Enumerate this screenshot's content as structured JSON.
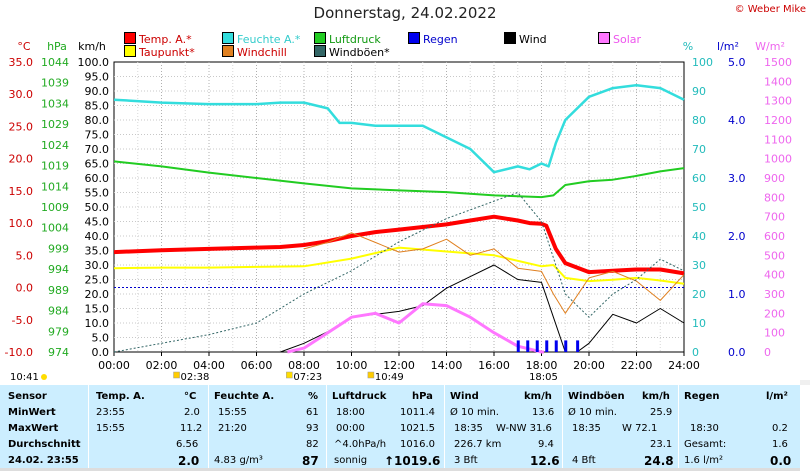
{
  "header": {
    "title": "Donnerstag, 24.02.2022",
    "credit": "© Weber Mike"
  },
  "legend": [
    {
      "label": "Temp. A.*",
      "color": "#ff0000",
      "text_color": "#cc0000"
    },
    {
      "label": "Feuchte A.*",
      "color": "#33dddd",
      "text_color": "#33cccc"
    },
    {
      "label": "Luftdruck",
      "color": "#22cc22",
      "text_color": "#119911"
    },
    {
      "label": "Regen",
      "color": "#0000ee",
      "text_color": "#0000cc"
    },
    {
      "label": "Wind",
      "color": "#000000",
      "text_color": "#000000"
    },
    {
      "label": "Solar",
      "color": "#ff77ff",
      "text_color": "#ee55ee"
    },
    {
      "label": "Taupunkt*",
      "color": "#ffff00",
      "text_color": "#cc0000"
    },
    {
      "label": "Windchill",
      "color": "#e08020",
      "text_color": "#cc0000"
    },
    {
      "label": "Windböen*",
      "color": "#336666",
      "text_color": "#000000"
    }
  ],
  "axes": {
    "temp": {
      "unit": "°C",
      "ticks": [
        "35.0",
        "30.0",
        "25.0",
        "20.0",
        "15.0",
        "10.0",
        "5.0",
        "0.0",
        "-5.0",
        "-10.0"
      ],
      "color": "#cc0000"
    },
    "pressure": {
      "unit": "hPa",
      "ticks": [
        "1044",
        "1039",
        "1034",
        "1029",
        "1024",
        "1019",
        "1014",
        "1009",
        "1004",
        "999",
        "994",
        "989",
        "984",
        "979",
        "974"
      ],
      "color": "#22aa22"
    },
    "wind": {
      "unit": "km/h",
      "ticks": [
        "100.0",
        "95.0",
        "90.0",
        "85.0",
        "80.0",
        "75.0",
        "70.0",
        "65.0",
        "60.0",
        "55.0",
        "50.0",
        "45.0",
        "40.0",
        "35.0",
        "30.0",
        "25.0",
        "20.0",
        "15.0",
        "10.0",
        "5.0",
        "0.0"
      ],
      "color": "#000000"
    },
    "humidity": {
      "unit": "%",
      "ticks": [
        "100",
        "90",
        "80",
        "70",
        "60",
        "50",
        "40",
        "30",
        "20",
        "10",
        "0"
      ],
      "color": "#22bbbb"
    },
    "rain": {
      "unit": "l/m²",
      "ticks": [
        "5.0",
        "4.0",
        "3.0",
        "2.0",
        "1.0",
        "0.0"
      ],
      "color": "#0000cc"
    },
    "solar": {
      "unit": "W/m²",
      "ticks": [
        "1500",
        "1400",
        "1300",
        "1200",
        "1100",
        "1000",
        "900",
        "800",
        "700",
        "600",
        "500",
        "400",
        "300",
        "200",
        "100",
        "0"
      ],
      "color": "#ee66ee"
    },
    "x": {
      "ticks": [
        "00:00",
        "02:00",
        "04:00",
        "06:00",
        "08:00",
        "10:00",
        "12:00",
        "14:00",
        "16:00",
        "18:00",
        "20:00",
        "22:00",
        "24:00"
      ]
    }
  },
  "markers": {
    "sunrise": "07:23",
    "sunset": "18:05",
    "moon1": "02:38",
    "moon2": "10:49",
    "left_time": "10:41"
  },
  "chart_data": {
    "type": "line",
    "x_unit": "hours",
    "series": [
      {
        "name": "Temp. A.*",
        "axis": "°C",
        "color": "#ff0000",
        "x": [
          0,
          2,
          4,
          6,
          7,
          8,
          9,
          10,
          11,
          12,
          13,
          14,
          15,
          16,
          17,
          17.5,
          18,
          18.2,
          18.6,
          19,
          20,
          21,
          22,
          23,
          24
        ],
        "y": [
          5.5,
          5.8,
          6.0,
          6.2,
          6.3,
          6.6,
          7.2,
          8.0,
          8.6,
          9.0,
          9.4,
          9.8,
          10.4,
          11.0,
          10.4,
          10.0,
          9.9,
          9.6,
          6.0,
          3.8,
          2.4,
          2.6,
          2.8,
          2.8,
          2.2
        ]
      },
      {
        "name": "Feuchte A.*",
        "axis": "%",
        "color": "#33dddd",
        "x": [
          0,
          2,
          4,
          6,
          7,
          8,
          9,
          9.5,
          10,
          11,
          12,
          13,
          14,
          15,
          16,
          17,
          17.5,
          18,
          18.3,
          18.6,
          19,
          20,
          21,
          22,
          23,
          24
        ],
        "y": [
          87,
          86,
          85.5,
          85.5,
          86,
          86,
          84,
          79,
          79,
          78,
          78,
          78,
          74,
          70,
          62,
          64,
          63,
          65,
          64,
          72,
          80,
          88,
          91,
          92,
          91,
          87
        ]
      },
      {
        "name": "Luftdruck",
        "axis": "hPa",
        "color": "#22cc22",
        "x": [
          0,
          2,
          4,
          6,
          8,
          10,
          12,
          14,
          16,
          18,
          18.5,
          19,
          20,
          21,
          22,
          23,
          24
        ],
        "y": [
          1020.0,
          1018.8,
          1017.3,
          1016.0,
          1014.7,
          1013.5,
          1013.0,
          1012.6,
          1011.8,
          1011.4,
          1011.8,
          1014.3,
          1015.2,
          1015.6,
          1016.5,
          1017.6,
          1018.4
        ]
      },
      {
        "name": "Taupunkt*",
        "axis": "°C",
        "color": "#ffff00",
        "x": [
          0,
          2,
          4,
          6,
          8,
          10,
          12,
          14,
          16,
          18,
          18.5,
          19,
          20,
          21,
          22,
          23,
          24
        ],
        "y": [
          3.0,
          3.1,
          3.1,
          3.2,
          3.3,
          4.5,
          6.2,
          5.6,
          5.0,
          3.3,
          3.5,
          1.5,
          1.0,
          1.2,
          1.5,
          1.1,
          0.6
        ]
      },
      {
        "name": "Windchill",
        "axis": "°C",
        "color": "#e08020",
        "x": [
          8,
          9,
          10,
          11,
          12,
          13,
          14,
          15,
          16,
          17,
          18,
          18.5,
          19,
          20,
          21,
          22,
          23,
          24
        ],
        "y": [
          6.0,
          7.0,
          8.5,
          7.0,
          5.5,
          6.0,
          7.5,
          5.0,
          6.0,
          3.0,
          2.5,
          -1.0,
          -4.0,
          1.5,
          2.5,
          1.0,
          -2.0,
          2.0
        ]
      },
      {
        "name": "Wind",
        "axis": "km/h",
        "color": "#000000",
        "x": [
          0,
          4,
          5,
          6,
          7,
          8,
          9,
          10,
          11,
          12,
          13,
          14,
          15,
          16,
          17,
          18,
          18.5,
          19,
          19.5,
          20,
          21,
          22,
          23,
          24
        ],
        "y": [
          0,
          0,
          0,
          0,
          0,
          3,
          7,
          12,
          13,
          14,
          16,
          22,
          26,
          30,
          25,
          24,
          12,
          0,
          0,
          3,
          13,
          10,
          15,
          10
        ]
      },
      {
        "name": "Windböen*",
        "axis": "km/h",
        "color": "#336666",
        "x": [
          0,
          2,
          4,
          6,
          8,
          10,
          12,
          14,
          16,
          17,
          17.5,
          18,
          19,
          20,
          21,
          22,
          23,
          24
        ],
        "y": [
          0,
          3,
          6,
          10,
          20,
          28,
          38,
          46,
          52,
          55,
          50,
          45,
          20,
          12,
          20,
          25,
          32,
          28
        ]
      },
      {
        "name": "Solar",
        "axis": "W/m²",
        "color": "#ff77ff",
        "x": [
          7.3,
          8,
          9,
          10,
          11,
          12,
          13,
          14,
          15,
          16,
          17,
          18,
          18.1
        ],
        "y": [
          0,
          20,
          100,
          180,
          200,
          150,
          250,
          240,
          180,
          100,
          30,
          0,
          0
        ]
      },
      {
        "name": "Regen",
        "axis": "l/m²",
        "color": "#0000ee",
        "x": [
          17.0,
          17.4,
          17.8,
          18.2,
          18.6,
          19.0,
          19.5
        ],
        "y": [
          0.2,
          0.2,
          0.2,
          0.2,
          0.2,
          0.2,
          0.2
        ]
      }
    ]
  },
  "stats": {
    "headers": [
      "Sensor",
      "Temp. A.",
      "°C",
      "Feuchte A.",
      "%",
      "Luftdruck",
      "hPa",
      "Wind",
      "km/h",
      "Windböen",
      "km/h",
      "Regen",
      "l/m²"
    ],
    "rows": {
      "min": {
        "label": "MinWert",
        "t_time": "23:55",
        "t_val": "2.0",
        "h_time": "15:55",
        "h_val": "61",
        "p_time": "18:00",
        "p_val": "1011.4",
        "w_label": "Ø 10 min.",
        "w_val": "13.6",
        "g_label": "Ø 10 min.",
        "g_val": "25.9"
      },
      "max": {
        "label": "MaxWert",
        "t_time": "15:55",
        "t_val": "11.2",
        "h_time": "21:20",
        "h_val": "93",
        "p_time": "00:00",
        "p_val": "1021.5",
        "w_time": "18:35",
        "w_dir": "W-NW 31.6",
        "g_time": "18:35",
        "g_dir": "W 72.1",
        "r_time": "18:30",
        "r_val": "0.2"
      },
      "avg": {
        "label": "Durchschnitt",
        "t_val": "6.56",
        "h_val": "82",
        "p_trend": "^4.0hPa/h",
        "p_val": "1016.0",
        "w_dist": "226.7 km",
        "w_val": "9.4",
        "g_val": "23.1",
        "r_label": "Gesamt:",
        "r_val": "1.6"
      },
      "now": {
        "label": "24.02. 23:55",
        "t_val": "2.0",
        "h_abs": "4.83 g/m³",
        "h_val": "87",
        "p_text": "sonnig",
        "p_val": "↑1019.6",
        "w_bft": "3 Bft",
        "w_val": "12.6",
        "g_bft": "4 Bft",
        "g_val": "24.8",
        "r_unit": "1.6 l/m²",
        "r_val": "0.0"
      }
    }
  }
}
